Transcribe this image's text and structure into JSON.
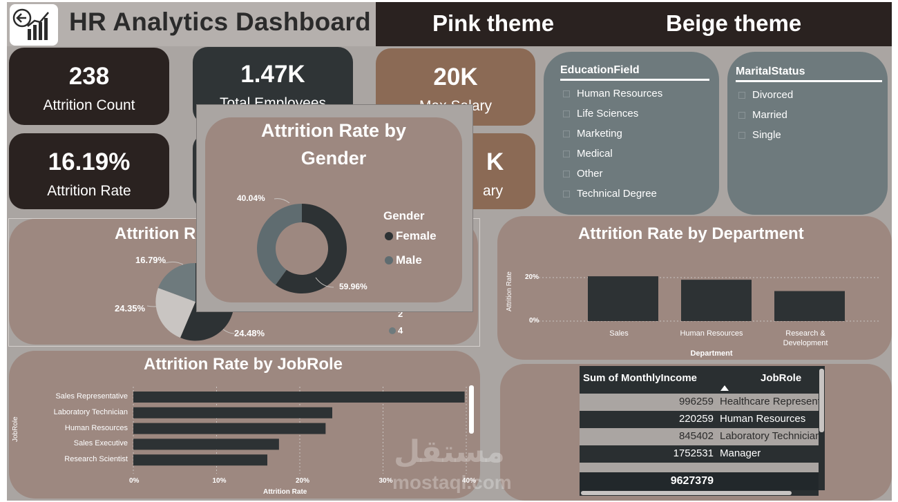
{
  "header": {
    "title": "HR Analytics Dashboard"
  },
  "themes": {
    "pink": "Pink theme",
    "beige": "Beige theme"
  },
  "kpis": [
    {
      "value": "238",
      "label": "Attrition Count"
    },
    {
      "value": "1.47K",
      "label": "Total Employees"
    },
    {
      "value": "20K",
      "label": "Max Salary"
    },
    {
      "value": "16.19%",
      "label": "Attrition Rate"
    },
    {
      "value": "K",
      "label": "ary"
    }
  ],
  "slicers": {
    "education": {
      "header": "EducationField",
      "items": [
        "Human Resources",
        "Life Sciences",
        "Marketing",
        "Medical",
        "Other",
        "Technical Degree"
      ]
    },
    "marital": {
      "header": "MaritalStatus",
      "items": [
        "Divorced",
        "Married",
        "Single"
      ]
    }
  },
  "gender_chart": {
    "title_line1": "Attrition Rate by",
    "title_line2": "Gender",
    "legend_title": "Gender",
    "female_label": "40.04%",
    "male_label": "59.96%"
  },
  "background_pie": {
    "title": "Attrition R",
    "labels": [
      "16.79%",
      "24.35%",
      "24.48%"
    ],
    "legend": [
      "2",
      "4"
    ]
  },
  "department_chart": {
    "title": "Attrition Rate by Department",
    "ylabel": "Attrition Rate",
    "xlabel": "Department",
    "ticks": [
      "20%",
      "0%"
    ],
    "cat_sales": "Sales",
    "cat_hr": "Human Resources",
    "cat_rd_1": "Research &",
    "cat_rd_2": "Development"
  },
  "jobrole_chart": {
    "title": "Attrition Rate by JobRole",
    "ylabel": "JobRole",
    "xlabel": "Attrition Rate",
    "ticks": [
      "0%",
      "10%",
      "20%",
      "30%",
      "40%"
    ]
  },
  "table": {
    "col_income": "Sum of MonthlyIncome",
    "col_role": "JobRole",
    "total": "9627379"
  },
  "watermark": {
    "arabic": "مستقل",
    "latin": "mostaql.com"
  },
  "chart_data": [
    {
      "type": "pie",
      "title": "Attrition Rate by Gender",
      "legend_title": "Gender",
      "categories": [
        "Female",
        "Male"
      ],
      "values": [
        40.04,
        59.96
      ],
      "colors": [
        "#2d3234",
        "#5f6c70"
      ]
    },
    {
      "type": "bar",
      "title": "Attrition Rate by Department",
      "xlabel": "Department",
      "ylabel": "Attrition Rate",
      "categories": [
        "Sales",
        "Human Resources",
        "Research & Development"
      ],
      "values": [
        20.6,
        19.0,
        13.8
      ],
      "ylim": [
        0,
        20
      ],
      "grid": true
    },
    {
      "type": "bar",
      "title": "Attrition Rate by JobRole",
      "xlabel": "Attrition Rate",
      "ylabel": "JobRole",
      "categories": [
        "Sales Representative",
        "Laboratory Technician",
        "Human Resources",
        "Sales Executive",
        "Research Scientist"
      ],
      "values": [
        39.8,
        23.9,
        23.1,
        17.5,
        16.1
      ],
      "xlim": [
        0,
        40
      ],
      "grid": true
    },
    {
      "type": "table",
      "columns": [
        "Sum of MonthlyIncome",
        "JobRole"
      ],
      "rows": [
        [
          "996259",
          "Healthcare Represent"
        ],
        [
          "220259",
          "Human Resources"
        ],
        [
          "845402",
          "Laboratory Technician"
        ],
        [
          "1752531",
          "Manager"
        ]
      ],
      "total": "9627379"
    }
  ]
}
